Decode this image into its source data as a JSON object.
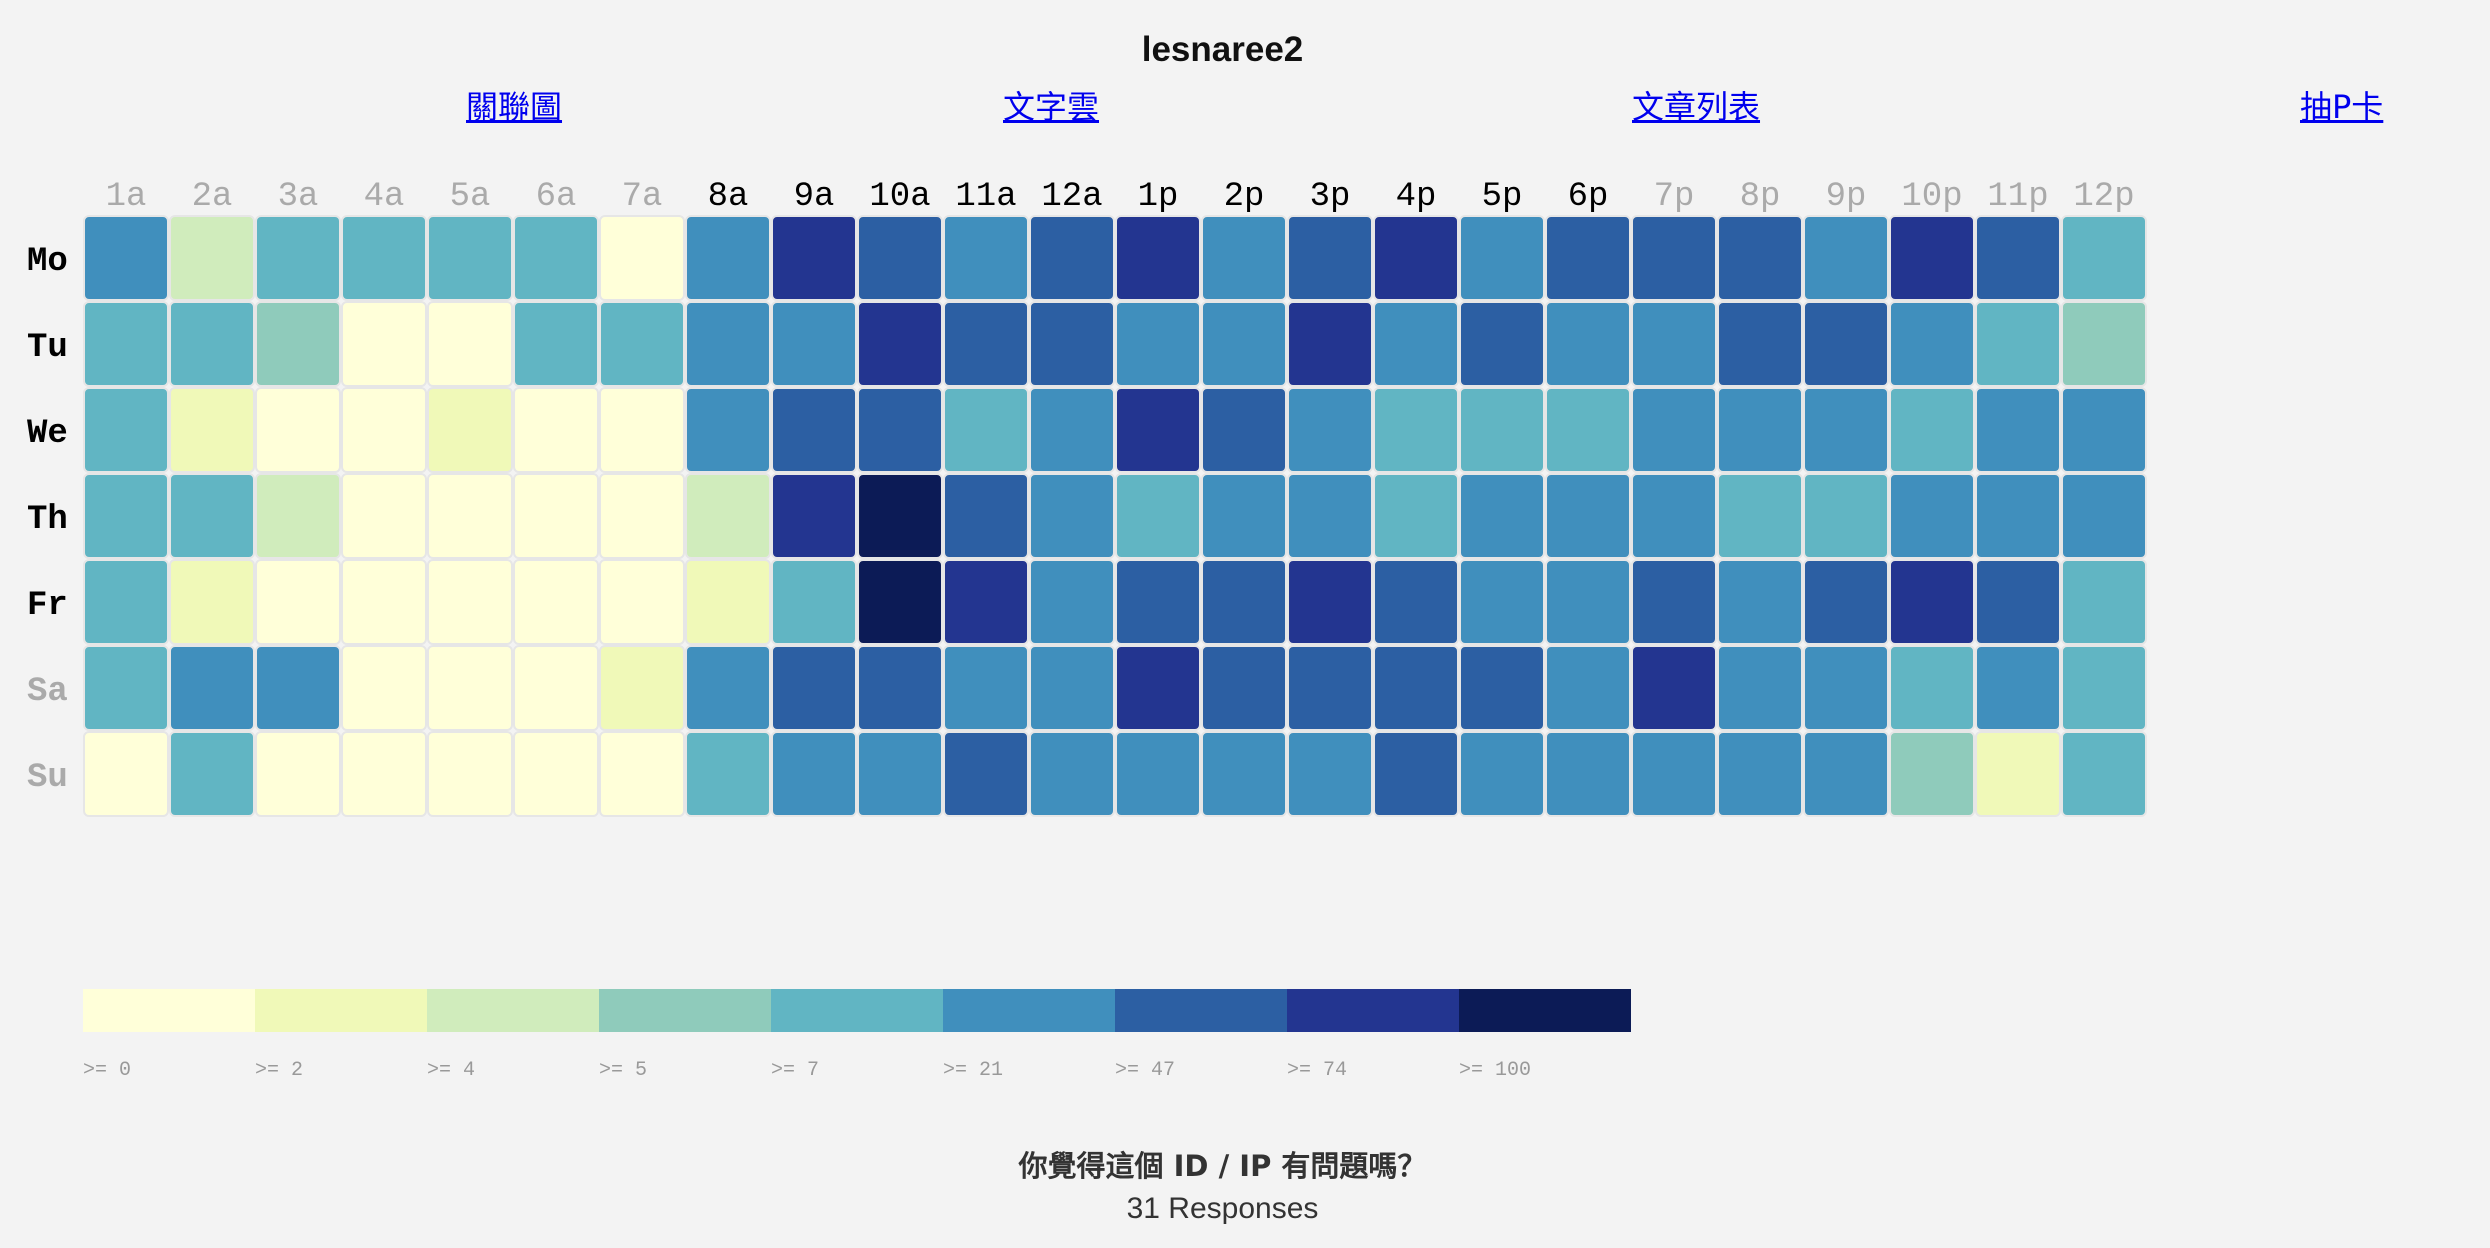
{
  "header": {
    "title": "lesnaree2"
  },
  "nav": [
    {
      "label": "關聯圖"
    },
    {
      "label": "文字雲"
    },
    {
      "label": "文章列表"
    },
    {
      "label": "抽P卡"
    }
  ],
  "chart_data": {
    "type": "heatmap",
    "hours": [
      "1a",
      "2a",
      "3a",
      "4a",
      "5a",
      "6a",
      "7a",
      "8a",
      "9a",
      "10a",
      "11a",
      "12a",
      "1p",
      "2p",
      "3p",
      "4p",
      "5p",
      "6p",
      "7p",
      "8p",
      "9p",
      "10p",
      "11p",
      "12p"
    ],
    "hours_highlighted": [
      false,
      false,
      false,
      false,
      false,
      false,
      false,
      true,
      true,
      true,
      true,
      true,
      true,
      true,
      true,
      true,
      true,
      true,
      false,
      false,
      false,
      false,
      false,
      false
    ],
    "days": [
      "Mo",
      "Tu",
      "We",
      "Th",
      "Fr",
      "Sa",
      "Su"
    ],
    "days_highlighted": [
      true,
      true,
      true,
      true,
      true,
      false,
      false
    ],
    "values": [
      [
        21,
        4,
        7,
        7,
        7,
        7,
        0,
        21,
        74,
        47,
        21,
        47,
        74,
        21,
        47,
        74,
        21,
        47,
        47,
        47,
        21,
        74,
        47,
        7
      ],
      [
        7,
        7,
        5,
        0,
        0,
        7,
        7,
        21,
        21,
        74,
        47,
        47,
        21,
        21,
        74,
        21,
        47,
        21,
        21,
        47,
        47,
        21,
        7,
        5
      ],
      [
        7,
        2,
        0,
        0,
        2,
        0,
        0,
        21,
        47,
        47,
        7,
        21,
        74,
        47,
        21,
        7,
        7,
        7,
        21,
        21,
        21,
        7,
        21,
        21
      ],
      [
        7,
        7,
        4,
        0,
        0,
        0,
        0,
        4,
        74,
        100,
        47,
        21,
        7,
        21,
        21,
        7,
        21,
        21,
        21,
        7,
        7,
        21,
        21,
        21
      ],
      [
        7,
        2,
        0,
        0,
        0,
        0,
        0,
        2,
        7,
        100,
        74,
        21,
        47,
        47,
        74,
        47,
        21,
        21,
        47,
        21,
        47,
        74,
        47,
        7
      ],
      [
        7,
        21,
        21,
        0,
        0,
        0,
        2,
        21,
        47,
        47,
        21,
        21,
        74,
        47,
        47,
        47,
        47,
        21,
        74,
        21,
        21,
        7,
        21,
        7
      ],
      [
        0,
        7,
        0,
        0,
        0,
        0,
        0,
        7,
        21,
        21,
        47,
        21,
        21,
        21,
        21,
        47,
        21,
        21,
        21,
        21,
        21,
        5,
        2,
        7
      ]
    ],
    "legend": {
      "thresholds": [
        0,
        2,
        4,
        5,
        7,
        21,
        47,
        74,
        100
      ],
      "labels": [
        ">= 0",
        ">= 2",
        ">= 4",
        ">= 5",
        ">= 7",
        ">= 21",
        ">= 47",
        ">= 74",
        ">= 100"
      ],
      "colors": [
        "#ffffd9",
        "#f0f9b8",
        "#d0ecbc",
        "#8fcbbb",
        "#61b5c3",
        "#408fbd",
        "#2c5fa3",
        "#233590",
        "#0c1b56"
      ]
    }
  },
  "poll": {
    "question": "你覺得這個 ID / IP 有問題嗎？",
    "responses": "31 Responses"
  }
}
